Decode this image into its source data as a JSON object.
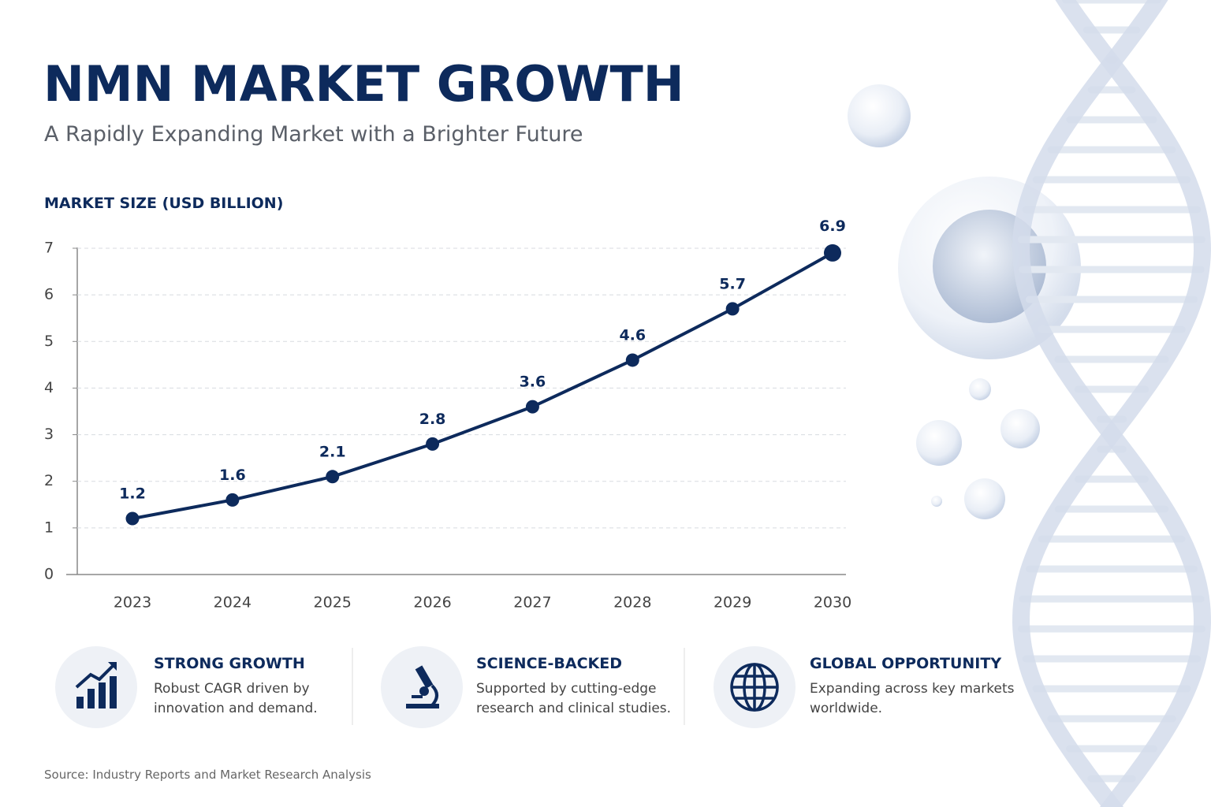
{
  "title": "NMN MARKET GROWTH",
  "subtitle": "A Rapidly Expanding Market with a Brighter Future",
  "chart_data": {
    "type": "line",
    "y_label": "MARKET SIZE (USD BILLION)",
    "categories": [
      "2023",
      "2024",
      "2025",
      "2026",
      "2027",
      "2028",
      "2029",
      "2030"
    ],
    "values": [
      1.2,
      1.6,
      2.1,
      2.8,
      3.6,
      4.6,
      5.7,
      6.9
    ],
    "color": "#0d2a5c",
    "ylim": [
      0,
      7
    ],
    "yticks": [
      0,
      1,
      2,
      3,
      4,
      5,
      6,
      7
    ],
    "grid": true
  },
  "features": [
    {
      "title": "STRONG GROWTH",
      "desc": [
        "Robust CAGR driven by",
        "innovation and demand."
      ]
    },
    {
      "title": "SCIENCE-BACKED",
      "desc": [
        "Supported by cutting-edge",
        "research and clinical studies."
      ]
    },
    {
      "title": "GLOBAL OPPORTUNITY",
      "desc": [
        "Expanding across key markets",
        "worldwide."
      ]
    }
  ],
  "source": "Source: Industry Reports and Market Research Analysis"
}
